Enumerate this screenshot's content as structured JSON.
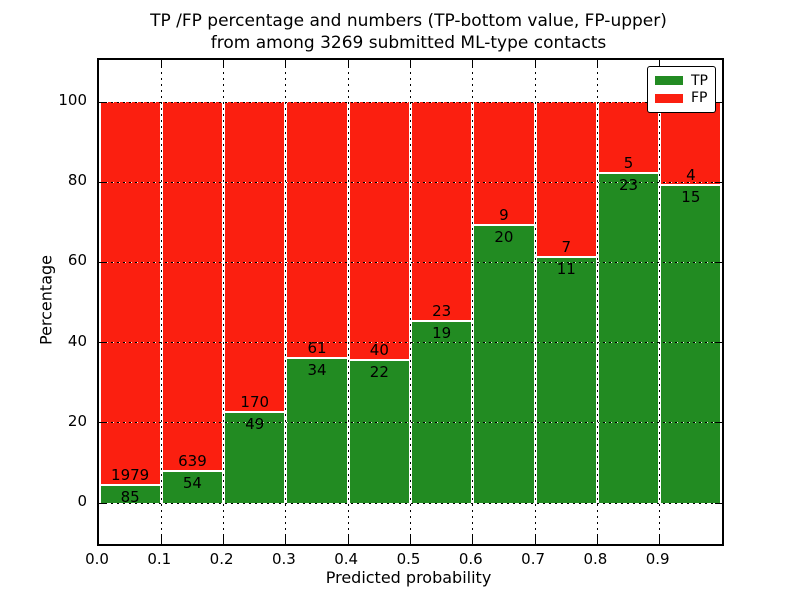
{
  "chart_data": {
    "type": "bar",
    "subtype": "stacked_percentage",
    "title_line1": "TP /FP percentage and numbers (TP-bottom value, FP-upper)",
    "title_line2": "from among 3269 submitted ML-type contacts",
    "xlabel": "Predicted probability",
    "ylabel": "Percentage",
    "total_submitted": 3269,
    "categories": [
      "0.0-0.1",
      "0.1-0.2",
      "0.2-0.3",
      "0.3-0.4",
      "0.4-0.5",
      "0.5-0.6",
      "0.6-0.7",
      "0.7-0.8",
      "0.8-0.9",
      "0.9-1.0"
    ],
    "series": [
      {
        "name": "TP",
        "color": "#228b22",
        "counts": [
          85,
          54,
          49,
          34,
          22,
          19,
          20,
          11,
          23,
          15
        ]
      },
      {
        "name": "FP",
        "color": "#fb1f10",
        "counts": [
          1979,
          639,
          170,
          61,
          40,
          23,
          9,
          7,
          5,
          4
        ]
      }
    ],
    "tp_percent": [
      4.12,
      7.79,
      22.37,
      35.79,
      35.48,
      45.24,
      68.97,
      61.11,
      82.14,
      78.95
    ],
    "xticks": [
      "0.0",
      "0.1",
      "0.2",
      "0.3",
      "0.4",
      "0.5",
      "0.6",
      "0.7",
      "0.8",
      "0.9"
    ],
    "yticks": [
      0,
      20,
      40,
      60,
      80,
      100
    ],
    "xlim": [
      0.0,
      1.0
    ],
    "ylim": [
      -10,
      110
    ],
    "grid": "dotted",
    "legend": {
      "position": "upper right",
      "entries": [
        "TP",
        "FP"
      ]
    }
  }
}
